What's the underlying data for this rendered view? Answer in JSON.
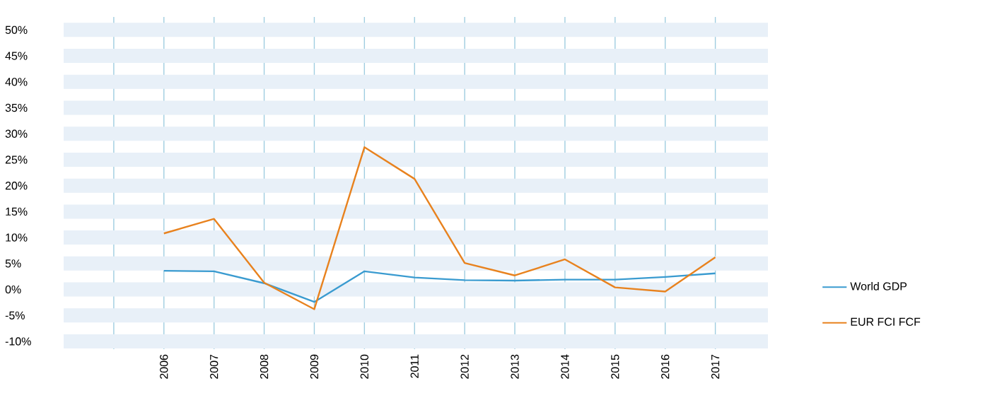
{
  "chart_data": {
    "type": "line",
    "categories": [
      null,
      "2006",
      "2007",
      "2008",
      "2009",
      "2010",
      "2011",
      "2012",
      "2013",
      "2014",
      "2015",
      "2016",
      "2017"
    ],
    "series": [
      {
        "name": "World GDP",
        "color": "#3a9bd0",
        "values": [
          null,
          3.6,
          3.5,
          1.2,
          -2.4,
          3.5,
          2.3,
          1.8,
          1.7,
          1.9,
          1.9,
          2.4,
          3.1
        ]
      },
      {
        "name": "EUR FCI FCF",
        "color": "#e8821e",
        "values": [
          null,
          10.8,
          13.6,
          1.3,
          -3.8,
          27.4,
          21.3,
          5.1,
          2.7,
          5.8,
          0.4,
          -0.4,
          6.2
        ]
      }
    ],
    "ylim": [
      -11.5,
      52.5
    ],
    "yticks": [
      {
        "value": -10,
        "label": "-10%"
      },
      {
        "value": -5,
        "label": "-5%"
      },
      {
        "value": 0,
        "label": "0%"
      },
      {
        "value": 5,
        "label": "5%"
      },
      {
        "value": 10,
        "label": "10%"
      },
      {
        "value": 15,
        "label": "15%"
      },
      {
        "value": 20,
        "label": "20%"
      },
      {
        "value": 25,
        "label": "25%"
      },
      {
        "value": 30,
        "label": "30%"
      },
      {
        "value": 35,
        "label": "35%"
      },
      {
        "value": 40,
        "label": "40%"
      },
      {
        "value": 45,
        "label": "45%"
      },
      {
        "value": 50,
        "label": "50%"
      }
    ],
    "grid": true,
    "legend": "right",
    "marker": "none",
    "line_style": "solid"
  }
}
